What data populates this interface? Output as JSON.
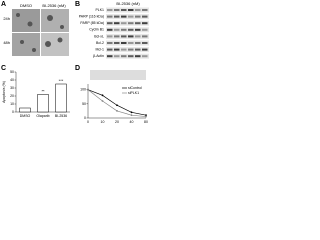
{
  "panels": {
    "a": "A",
    "b": "B",
    "c": "C",
    "d": "D"
  },
  "panel_a": {
    "columns": [
      "DMSO",
      "BI-2536 (nM)"
    ],
    "rows": [
      "24h",
      "48h"
    ]
  },
  "panel_b": {
    "header": "BI-2536 (nM)",
    "labels": [
      "PLK1",
      "PARP (116 kDa)",
      "PARP (85 kDa)",
      "Cyclin B1",
      "Bcl-xL",
      "Bcl-2",
      "Mcl-1",
      "β-Actin"
    ]
  },
  "chart_data": [
    {
      "type": "bar",
      "y_label": "Apoptosis (%)",
      "categories": [
        "DMSO",
        "Olaparib",
        "BI-2536"
      ],
      "values": [
        5,
        22,
        35
      ],
      "color": "#ffffff",
      "ylim": [
        0,
        50
      ],
      "yticks": [
        0,
        10,
        20,
        30,
        40,
        50
      ],
      "annotations": [
        {
          "category": "Olaparib",
          "text": "**"
        },
        {
          "category": "BI-2536",
          "text": "***"
        }
      ]
    },
    {
      "type": "line",
      "categories": [
        "0",
        "10",
        "20",
        "40",
        "80"
      ],
      "series": [
        {
          "name": "siControl",
          "color": "#000000",
          "values": [
            100,
            80,
            45,
            20,
            10
          ]
        },
        {
          "name": "siPLK1",
          "color": "#888888",
          "values": [
            100,
            60,
            25,
            10,
            5
          ]
        }
      ],
      "ylim": [
        0,
        120
      ],
      "yticks": [
        0,
        50,
        100
      ]
    }
  ]
}
